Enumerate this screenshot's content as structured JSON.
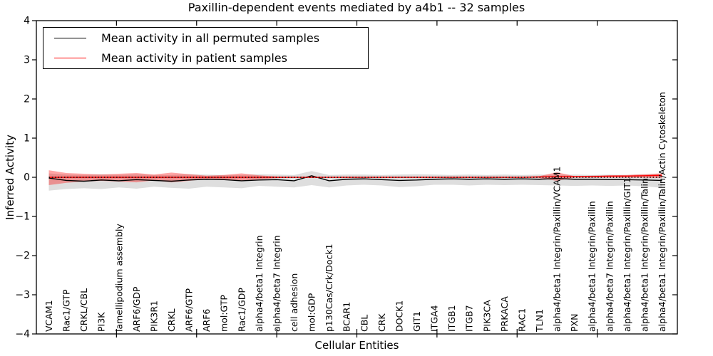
{
  "chart_data": {
    "type": "line",
    "title": "Paxillin-dependent events mediated by a4b1 -- 32 samples",
    "xlabel": "Cellular Entities",
    "ylabel": "Inferred Activity",
    "ylim": [
      -4,
      4
    ],
    "yticks": [
      -4,
      -3,
      -2,
      -1,
      0,
      1,
      2,
      3,
      4
    ],
    "grid": false,
    "legend_position": "upper left",
    "background_color": "#ffffff",
    "zero_reference_line": {
      "y": 0,
      "style": "dotted",
      "color": "#000000"
    },
    "categories": [
      "VCAM1",
      "Rac1/GTP",
      "CRKL/CBL",
      "PI3K",
      "lamellipodium assembly",
      "ARF6/GDP",
      "PIK3R1",
      "CRKL",
      "ARF6/GTP",
      "ARF6",
      "mol:GTP",
      "Rac1/GDP",
      "alpha4/beta1 Integrin",
      "alpha4/beta7 Integrin",
      "cell adhesion",
      "mol:GDP",
      "p130Cas/Crk/Dock1",
      "BCAR1",
      "CBL",
      "CRK",
      "DOCK1",
      "GIT1",
      "ITGA4",
      "ITGB1",
      "ITGB7",
      "PIK3CA",
      "PRKACA",
      "RAC1",
      "TLN1",
      "alpha4/beta1 Integrin/Paxillin/VCAM1",
      "PXN",
      "alpha4/beta1 Integrin/Paxillin",
      "alpha4/beta7 Integrin/Paxillin",
      "alpha4/beta1 Integrin/Paxillin/GIT1",
      "alpha4/beta1 Integrin/Paxillin/Talin",
      "alpha4/beta1 Integrin/Paxillin/Talin/Actin Cytoskeleton"
    ],
    "series": [
      {
        "name": "Mean activity in all permuted samples",
        "color": "#000000",
        "band_color": "rgba(0,0,0,0.13)",
        "values": [
          -0.02,
          -0.08,
          -0.1,
          -0.07,
          -0.09,
          -0.06,
          -0.08,
          -0.1,
          -0.07,
          -0.05,
          -0.06,
          -0.09,
          -0.07,
          -0.06,
          -0.09,
          0.04,
          -0.09,
          -0.05,
          -0.04,
          -0.06,
          -0.08,
          -0.07,
          -0.05,
          -0.04,
          -0.05,
          -0.04,
          -0.05,
          -0.04,
          -0.05,
          -0.03,
          -0.05,
          -0.05,
          -0.06,
          -0.06,
          -0.07,
          -0.08
        ],
        "band_lower": [
          -0.34,
          -0.3,
          -0.28,
          -0.3,
          -0.26,
          -0.29,
          -0.24,
          -0.27,
          -0.29,
          -0.24,
          -0.26,
          -0.28,
          -0.22,
          -0.24,
          -0.26,
          -0.2,
          -0.26,
          -0.21,
          -0.19,
          -0.21,
          -0.25,
          -0.23,
          -0.19,
          -0.19,
          -0.21,
          -0.19,
          -0.2,
          -0.19,
          -0.2,
          -0.21,
          -0.22,
          -0.21,
          -0.22,
          -0.21,
          -0.23,
          -0.27
        ],
        "band_upper": [
          0.1,
          0.07,
          0.06,
          0.08,
          0.06,
          0.08,
          0.06,
          0.06,
          0.08,
          0.07,
          0.06,
          0.06,
          0.08,
          0.07,
          0.06,
          0.16,
          0.06,
          0.07,
          0.07,
          0.06,
          0.07,
          0.08,
          0.07,
          0.06,
          0.07,
          0.06,
          0.07,
          0.06,
          0.07,
          0.06,
          0.07,
          0.06,
          0.07,
          0.06,
          0.07,
          0.09
        ]
      },
      {
        "name": "Mean activity in patient samples",
        "color": "#ff0000",
        "band_color": "rgba(255,0,0,0.35)",
        "values": [
          0.0,
          0.0,
          0.0,
          0.0,
          0.0,
          0.0,
          0.0,
          0.0,
          0.0,
          0.0,
          0.0,
          0.0,
          0.0,
          0.0,
          0.0,
          0.0,
          0.0,
          0.0,
          0.0,
          0.0,
          0.0,
          0.0,
          0.0,
          0.0,
          0.0,
          0.0,
          0.0,
          0.0,
          0.01,
          0.02,
          0.02,
          0.02,
          0.03,
          0.03,
          0.04,
          0.05
        ],
        "band_lower": [
          -0.2,
          -0.14,
          -0.11,
          -0.09,
          -0.11,
          -0.13,
          -0.08,
          -0.13,
          -0.09,
          -0.04,
          -0.06,
          -0.09,
          -0.05,
          -0.02,
          -0.01,
          -0.01,
          -0.01,
          -0.01,
          -0.01,
          -0.01,
          -0.01,
          -0.01,
          -0.01,
          -0.01,
          -0.01,
          -0.01,
          -0.01,
          -0.01,
          -0.02,
          -0.09,
          -0.01,
          -0.01,
          -0.01,
          -0.01,
          -0.01,
          -0.02
        ],
        "band_upper": [
          0.18,
          0.11,
          0.09,
          0.07,
          0.09,
          0.11,
          0.07,
          0.12,
          0.08,
          0.04,
          0.06,
          0.1,
          0.05,
          0.02,
          0.01,
          0.01,
          0.01,
          0.01,
          0.01,
          0.01,
          0.01,
          0.01,
          0.01,
          0.01,
          0.01,
          0.01,
          0.01,
          0.01,
          0.03,
          0.13,
          0.03,
          0.04,
          0.05,
          0.06,
          0.08,
          0.1
        ]
      }
    ]
  }
}
